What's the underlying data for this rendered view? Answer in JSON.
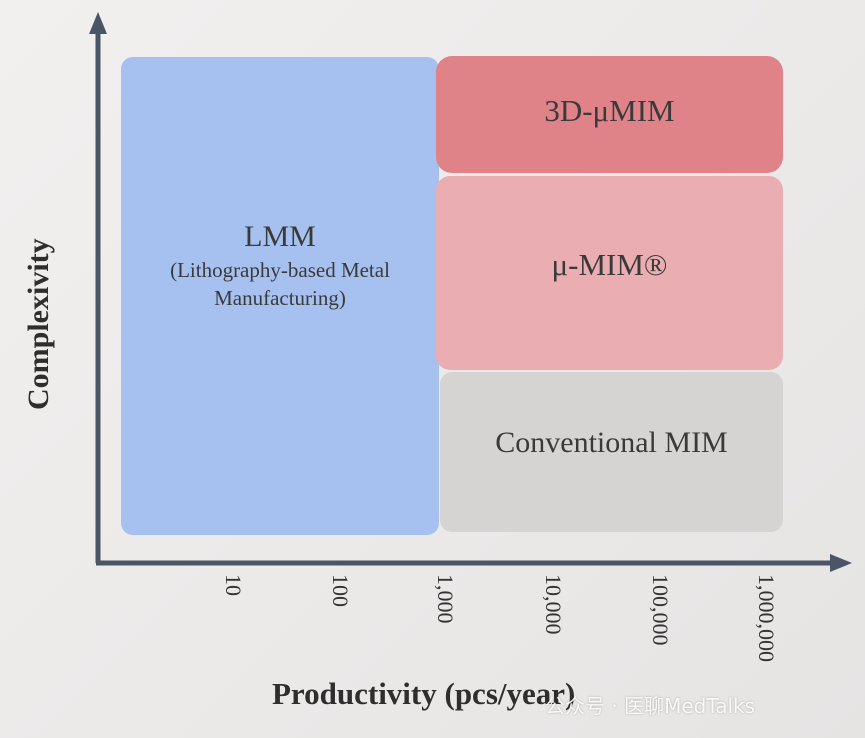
{
  "regions": {
    "lmm": {
      "title": "LMM",
      "subtitle_line1": "(Lithography-based Metal",
      "subtitle_line2": "Manufacturing)",
      "color": "#a6c1ef"
    },
    "micro_mim_3d": {
      "title": "3D-μMIM",
      "color": "#e08389"
    },
    "micro_mim": {
      "title": "μ-MIM®",
      "color": "#eaaeb2"
    },
    "conventional_mim": {
      "title": "Conventional MIM",
      "color": "#d6d4d3"
    }
  },
  "axes": {
    "y_title": "Complexivity",
    "x_title": "Productivity (pcs/year)",
    "x_ticks": [
      "10",
      "100",
      "1,000",
      "10,000",
      "100,000",
      "1,000,000"
    ],
    "axis_color": "#4a5565"
  },
  "watermark": "公众号 · 医聊MedTalks"
}
